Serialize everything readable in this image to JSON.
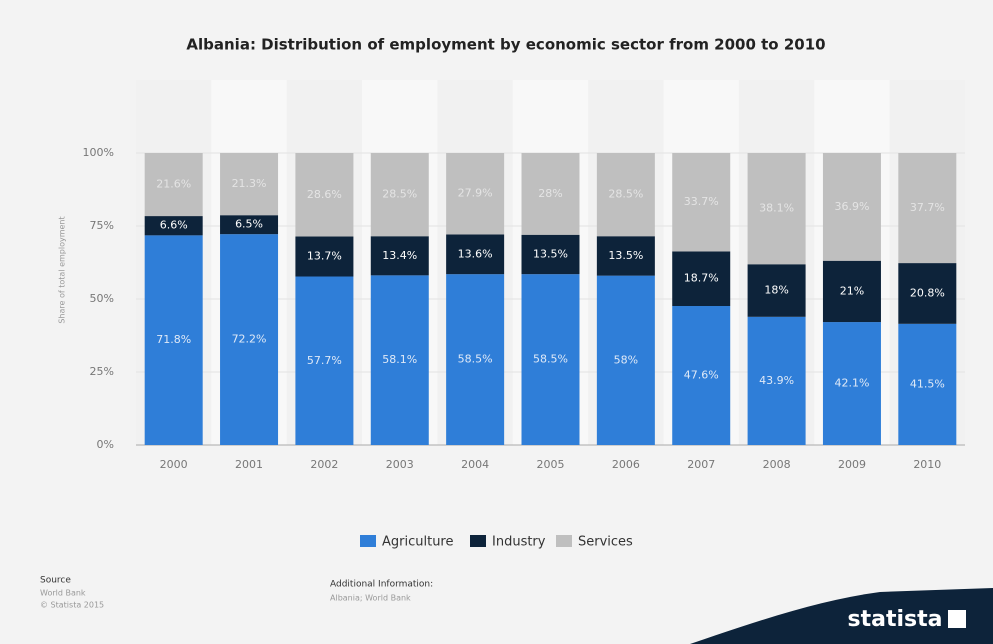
{
  "chart_data": {
    "type": "stacked_bar",
    "title": "Albania: Distribution of employment by economic sector from 2000 to 2010",
    "y_label": "Share of total employment",
    "categories": [
      "2000",
      "2001",
      "2002",
      "2003",
      "2004",
      "2005",
      "2006",
      "2007",
      "2008",
      "2009",
      "2010"
    ],
    "series": [
      {
        "name": "Agriculture",
        "color": "#2f7ed8",
        "label_color": "#dfe9f7",
        "values": [
          71.8,
          72.2,
          57.7,
          58.1,
          58.5,
          58.5,
          58,
          47.6,
          43.9,
          42.1,
          41.5
        ],
        "value_labels": [
          "71.8%",
          "72.2%",
          "57.7%",
          "58.1%",
          "58.5%",
          "58.5%",
          "58%",
          "47.6%",
          "43.9%",
          "42.1%",
          "41.5%"
        ]
      },
      {
        "name": "Industry",
        "color": "#0d233a",
        "label_color": "#ffffff",
        "values": [
          6.6,
          6.5,
          13.7,
          13.4,
          13.6,
          13.5,
          13.5,
          18.7,
          18,
          21,
          20.8
        ],
        "value_labels": [
          "6.6%",
          "6.5%",
          "13.7%",
          "13.4%",
          "13.6%",
          "13.5%",
          "13.5%",
          "18.7%",
          "18%",
          "21%",
          "20.8%"
        ]
      },
      {
        "name": "Services",
        "color": "#bfbfbf",
        "label_color": "#e4e4e4",
        "values": [
          21.6,
          21.3,
          28.6,
          28.5,
          27.9,
          28,
          28.5,
          33.7,
          38.1,
          36.9,
          37.7
        ],
        "value_labels": [
          "21.6%",
          "21.3%",
          "28.6%",
          "28.5%",
          "27.9%",
          "28%",
          "28.5%",
          "33.7%",
          "38.1%",
          "36.9%",
          "37.7%"
        ]
      }
    ],
    "ylim": [
      0,
      100
    ],
    "yticks": [
      {
        "value": 0,
        "label": "0%"
      },
      {
        "value": 25,
        "label": "25%"
      },
      {
        "value": 50,
        "label": "50%"
      },
      {
        "value": 75,
        "label": "75%"
      },
      {
        "value": 100,
        "label": "100%"
      }
    ]
  },
  "footer": {
    "source_title": "Source",
    "source_lines": [
      "World Bank",
      "© Statista 2015"
    ],
    "info_title": "Additional Information:",
    "info_text": "Albania; World Bank",
    "brand": "statista"
  }
}
